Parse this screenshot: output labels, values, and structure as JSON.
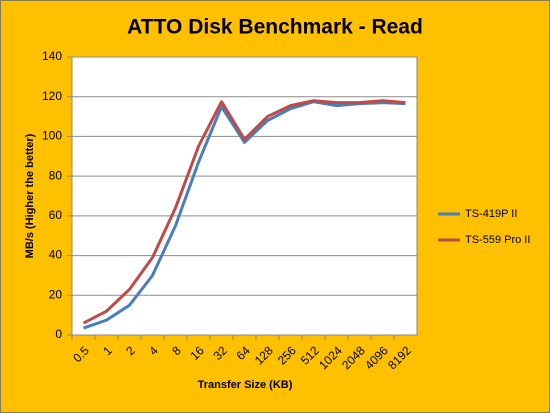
{
  "chart_data": {
    "type": "line",
    "title": "ATTO Disk Benchmark - Read",
    "x_label": "Transfer Size (KB)",
    "y_label": "MB/s (Higher the better)",
    "categories": [
      "0.5",
      "1",
      "2",
      "4",
      "8",
      "16",
      "32",
      "64",
      "128",
      "256",
      "512",
      "1024",
      "2048",
      "4096",
      "8192"
    ],
    "series": [
      {
        "name": "TS-419P II",
        "color": "#4a7ebb",
        "values": [
          3.5,
          7.5,
          15,
          30,
          55,
          87,
          115,
          97,
          108,
          114,
          117.5,
          115.5,
          116.5,
          117,
          116.5
        ]
      },
      {
        "name": "TS-559 Pro II",
        "color": "#be4b48",
        "values": [
          6,
          12,
          23,
          39,
          64,
          95,
          117.5,
          98.5,
          110,
          115.5,
          118,
          117,
          117,
          118,
          117
        ]
      }
    ],
    "ylim": [
      0,
      140
    ],
    "yticks": [
      0,
      20,
      40,
      60,
      80,
      100,
      120,
      140
    ],
    "grid": true,
    "legend": "right"
  }
}
